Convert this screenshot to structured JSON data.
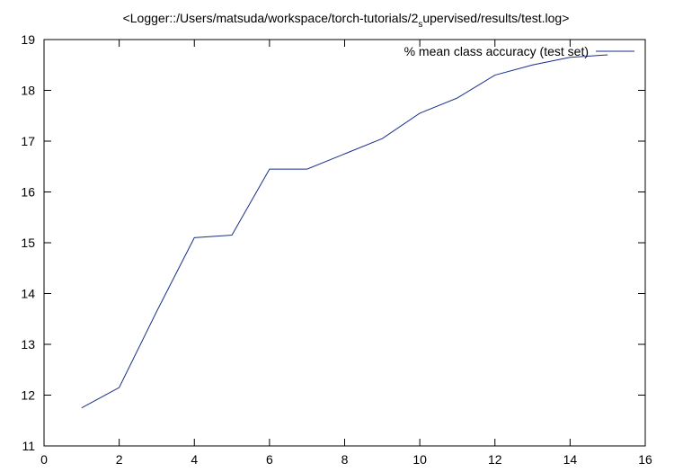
{
  "chart_data": {
    "type": "line",
    "title": "<Logger::/Users/matsuda/workspace/torch-tutorials/2",
    "title_subscript": "s",
    "title_suffix": "upervised/results/test.log>",
    "xlabel": "",
    "ylabel": "",
    "xlim": [
      0,
      16
    ],
    "ylim": [
      11,
      19
    ],
    "x_ticks": [
      0,
      2,
      4,
      6,
      8,
      10,
      12,
      14,
      16
    ],
    "y_ticks": [
      11,
      12,
      13,
      14,
      15,
      16,
      17,
      18,
      19
    ],
    "grid": false,
    "legend_position": "top-right",
    "series": [
      {
        "name": "% mean class accuracy (test set)",
        "color": "#1a2e8c",
        "x": [
          1,
          2,
          3,
          4,
          5,
          6,
          7,
          8,
          9,
          10,
          11,
          12,
          13,
          14,
          15
        ],
        "y": [
          11.75,
          12.15,
          13.65,
          15.1,
          15.15,
          16.45,
          16.45,
          16.75,
          17.05,
          17.55,
          17.85,
          18.3,
          18.5,
          18.65,
          18.7
        ]
      }
    ]
  }
}
